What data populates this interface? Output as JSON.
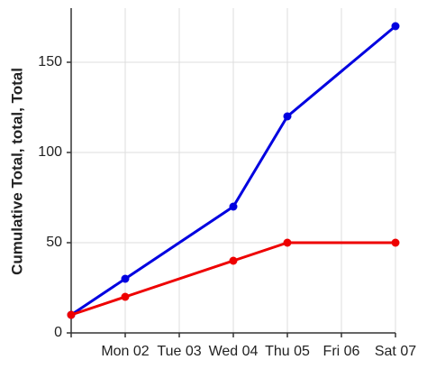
{
  "chart_data": {
    "type": "line",
    "y_label": "Cumulative Total, total, Total",
    "categories": [
      null,
      "Mon 02",
      "Tue 03",
      "Wed 04",
      "Thu 05",
      "Fri 06",
      "Sat 07"
    ],
    "series": [
      {
        "name": "Total",
        "color": "#0000e0",
        "values": [
          10,
          30,
          null,
          70,
          120,
          null,
          170
        ]
      },
      {
        "name": "total",
        "color": "#ee0000",
        "values": [
          10,
          20,
          null,
          40,
          50,
          null,
          50
        ]
      }
    ],
    "ylim": [
      0,
      180
    ],
    "yticks": [
      0,
      50,
      100,
      150
    ],
    "grid": true
  }
}
